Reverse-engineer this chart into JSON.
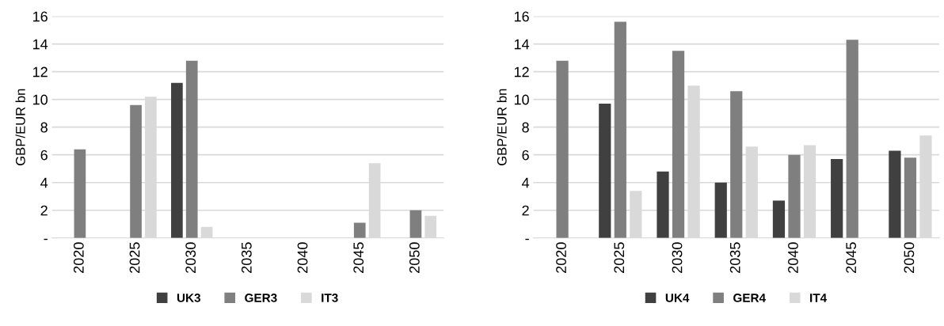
{
  "chart_data": [
    {
      "type": "bar",
      "ylabel": "GBP/EUR bn",
      "categories": [
        "2020",
        "2025",
        "2030",
        "2035",
        "2040",
        "2045",
        "2050"
      ],
      "series": [
        {
          "name": "UK3",
          "color": "#404040",
          "values": [
            null,
            null,
            11.2,
            null,
            null,
            null,
            null
          ]
        },
        {
          "name": "GER3",
          "color": "#7f7f7f",
          "values": [
            6.4,
            9.6,
            12.8,
            null,
            null,
            1.1,
            2.0
          ]
        },
        {
          "name": "IT3",
          "color": "#d9d9d9",
          "values": [
            null,
            10.2,
            0.8,
            null,
            null,
            5.4,
            1.6
          ]
        }
      ],
      "ylim": [
        0,
        16
      ],
      "yticks": [
        {
          "value": 0,
          "label": "-"
        },
        2,
        4,
        6,
        8,
        10,
        12,
        14,
        16
      ],
      "grid": "y",
      "legend": "bottom"
    },
    {
      "type": "bar",
      "ylabel": "GBP/EUR bn",
      "categories": [
        "2020",
        "2025",
        "2030",
        "2035",
        "2040",
        "2045",
        "2050"
      ],
      "series": [
        {
          "name": "UK4",
          "color": "#404040",
          "values": [
            null,
            9.7,
            4.8,
            4.0,
            2.7,
            5.7,
            6.3
          ]
        },
        {
          "name": "GER4",
          "color": "#7f7f7f",
          "values": [
            12.8,
            15.6,
            13.5,
            10.6,
            6.0,
            14.3,
            5.8
          ]
        },
        {
          "name": "IT4",
          "color": "#d9d9d9",
          "values": [
            null,
            3.4,
            11.0,
            6.6,
            6.7,
            null,
            7.4
          ]
        }
      ],
      "ylim": [
        0,
        16
      ],
      "yticks": [
        {
          "value": 0,
          "label": "-"
        },
        2,
        4,
        6,
        8,
        10,
        12,
        14,
        16
      ],
      "grid": "y",
      "legend": "bottom"
    }
  ]
}
